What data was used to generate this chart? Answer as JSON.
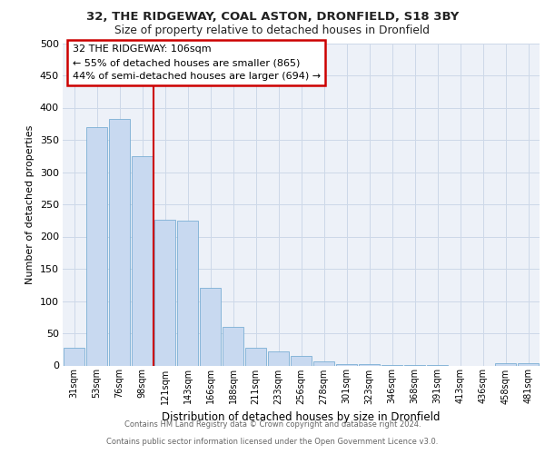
{
  "title1": "32, THE RIDGEWAY, COAL ASTON, DRONFIELD, S18 3BY",
  "title2": "Size of property relative to detached houses in Dronfield",
  "xlabel": "Distribution of detached houses by size in Dronfield",
  "ylabel": "Number of detached properties",
  "categories": [
    "31sqm",
    "53sqm",
    "76sqm",
    "98sqm",
    "121sqm",
    "143sqm",
    "166sqm",
    "188sqm",
    "211sqm",
    "233sqm",
    "256sqm",
    "278sqm",
    "301sqm",
    "323sqm",
    "346sqm",
    "368sqm",
    "391sqm",
    "413sqm",
    "436sqm",
    "458sqm",
    "481sqm"
  ],
  "values": [
    27,
    370,
    383,
    325,
    226,
    225,
    120,
    60,
    27,
    22,
    15,
    6,
    2,
    2,
    1,
    1,
    1,
    0,
    0,
    4,
    3
  ],
  "bar_color": "#c8d9f0",
  "bar_edge_color": "#7bafd4",
  "highlight_label": "32 THE RIDGEWAY: 106sqm",
  "annotation_line1": "← 55% of detached houses are smaller (865)",
  "annotation_line2": "44% of semi-detached houses are larger (694) →",
  "annotation_box_color": "#ffffff",
  "annotation_border_color": "#cc0000",
  "vline_color": "#cc0000",
  "vline_x": 3.5,
  "ylim": [
    0,
    500
  ],
  "yticks": [
    0,
    50,
    100,
    150,
    200,
    250,
    300,
    350,
    400,
    450,
    500
  ],
  "grid_color": "#cdd8e8",
  "bg_color": "#edf1f8",
  "footer1": "Contains HM Land Registry data © Crown copyright and database right 2024.",
  "footer2": "Contains public sector information licensed under the Open Government Licence v3.0."
}
